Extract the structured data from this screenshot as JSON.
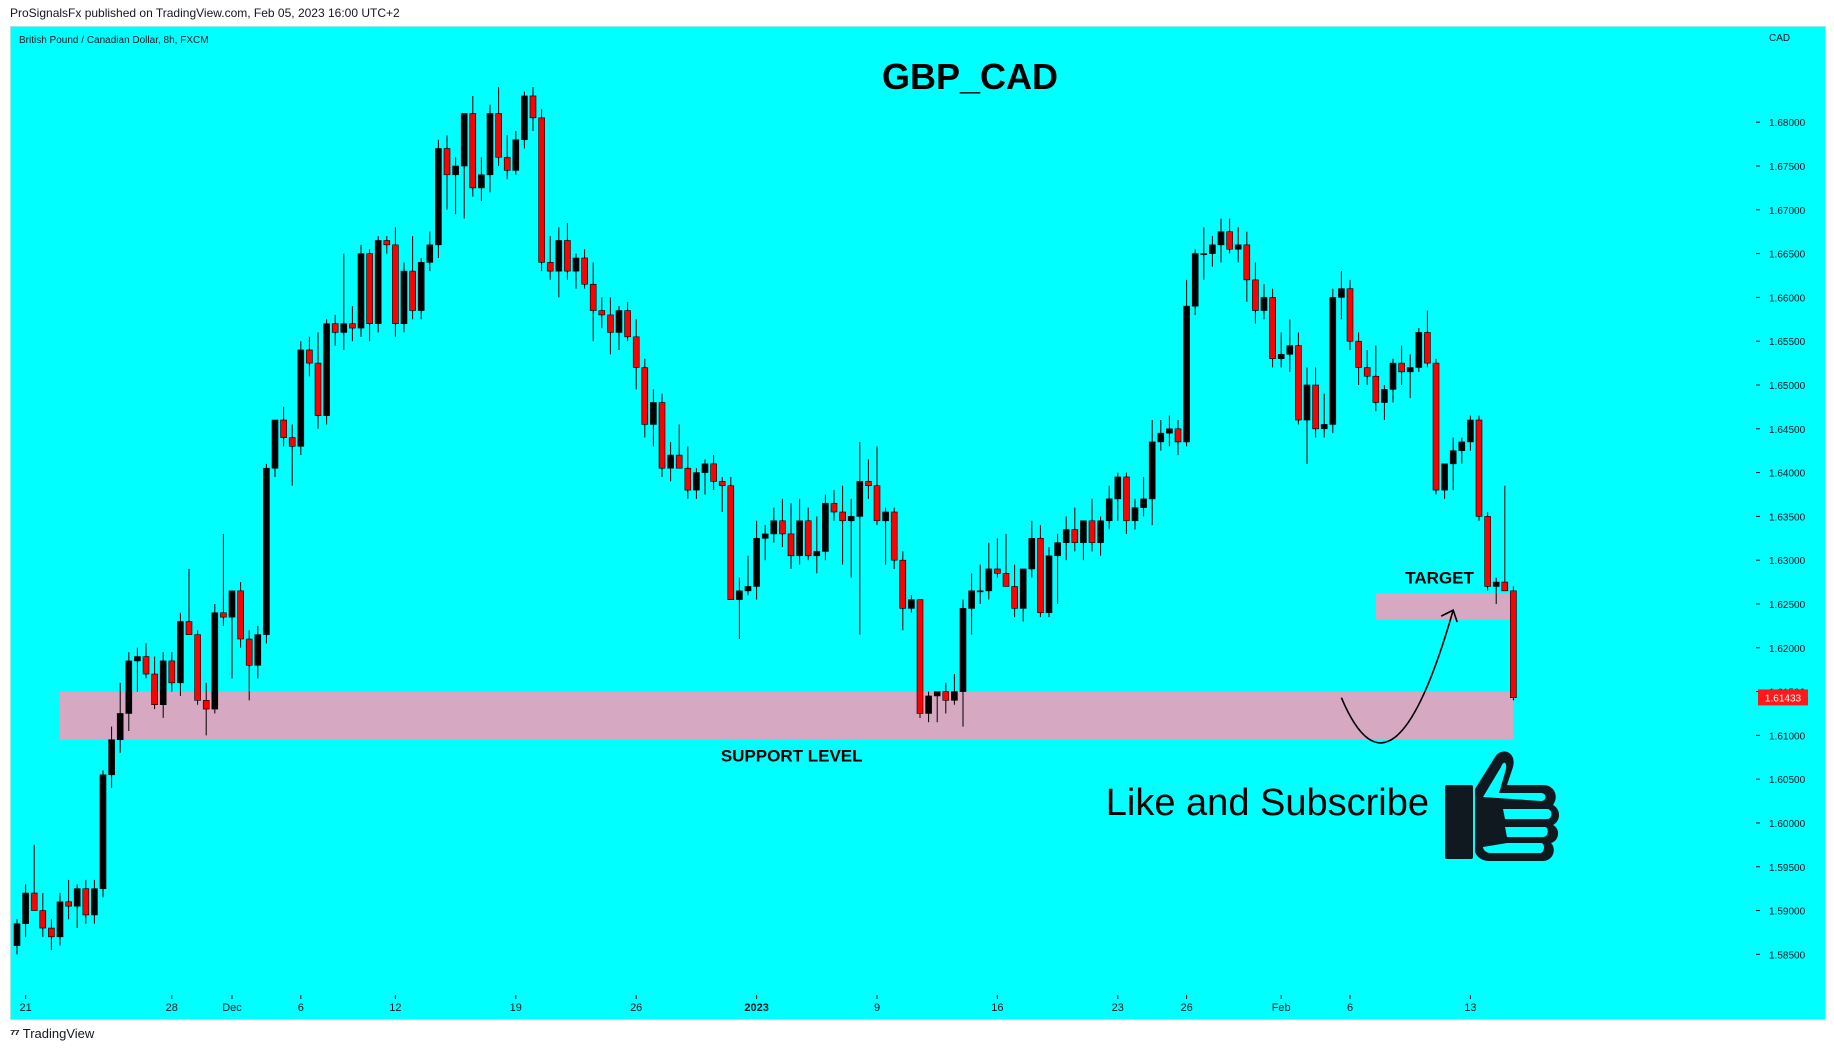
{
  "header": {
    "published_text": "ProSignalsFx published on TradingView.com, Feb 05, 2023 16:00 UTC+2"
  },
  "footer": {
    "brand": "TradingView",
    "logo_glyph": "⁷⁷"
  },
  "colors": {
    "background": "#00ffff",
    "up_candle": "#000000",
    "down_candle": "#ff0000",
    "zone": "#d7a8c2",
    "price_label_bg": "#ff1a1a"
  },
  "chart_data": {
    "type": "candlestick",
    "symbol_line": "British Pound / Canadian Dollar, 8h, FXCM",
    "title": "GBP_CAD",
    "currency_label": "CAD",
    "last_price_label": "1.61433",
    "y_ticks": [
      "1.68000",
      "1.67500",
      "1.67000",
      "1.66500",
      "1.66000",
      "1.65500",
      "1.65000",
      "1.64500",
      "1.64000",
      "1.63500",
      "1.63000",
      "1.62500",
      "1.62000",
      "1.61500",
      "1.61000",
      "1.60500",
      "1.60000",
      "1.59500",
      "1.59000",
      "1.58500"
    ],
    "ylim": [
      1.5815,
      1.6895
    ],
    "x_ticks": [
      {
        "label": "21",
        "index": 1
      },
      {
        "label": "28",
        "index": 18
      },
      {
        "label": "Dec",
        "index": 25
      },
      {
        "label": "6",
        "index": 33
      },
      {
        "label": "12",
        "index": 44
      },
      {
        "label": "19",
        "index": 58
      },
      {
        "label": "26",
        "index": 72
      },
      {
        "label": "2023",
        "index": 86,
        "bold": true
      },
      {
        "label": "9",
        "index": 100
      },
      {
        "label": "16",
        "index": 114
      },
      {
        "label": "23",
        "index": 128
      },
      {
        "label": "26",
        "index": 136
      },
      {
        "label": "Feb",
        "index": 147
      },
      {
        "label": "6",
        "index": 155
      },
      {
        "label": "13",
        "index": 169
      }
    ],
    "candles": [
      [
        1.586,
        1.589,
        1.585,
        1.5885
      ],
      [
        1.5885,
        1.593,
        1.587,
        1.592
      ],
      [
        1.592,
        1.5975,
        1.5905,
        1.59
      ],
      [
        1.59,
        1.592,
        1.587,
        1.588
      ],
      [
        1.588,
        1.589,
        1.5855,
        1.587
      ],
      [
        1.587,
        1.592,
        1.586,
        1.591
      ],
      [
        1.591,
        1.5935,
        1.589,
        1.5905
      ],
      [
        1.5905,
        1.593,
        1.588,
        1.5925
      ],
      [
        1.5925,
        1.5935,
        1.5885,
        1.5895
      ],
      [
        1.5895,
        1.5935,
        1.5885,
        1.5925
      ],
      [
        1.5925,
        1.606,
        1.5915,
        1.6055
      ],
      [
        1.6055,
        1.611,
        1.604,
        1.6095
      ],
      [
        1.6095,
        1.616,
        1.608,
        1.6125
      ],
      [
        1.6125,
        1.6195,
        1.6105,
        1.6185
      ],
      [
        1.6185,
        1.62,
        1.615,
        1.619
      ],
      [
        1.619,
        1.6205,
        1.6165,
        1.617
      ],
      [
        1.617,
        1.619,
        1.613,
        1.6135
      ],
      [
        1.6135,
        1.6195,
        1.612,
        1.6185
      ],
      [
        1.6185,
        1.6195,
        1.615,
        1.616
      ],
      [
        1.616,
        1.624,
        1.6145,
        1.623
      ],
      [
        1.623,
        1.629,
        1.6215,
        1.6215
      ],
      [
        1.6215,
        1.622,
        1.6135,
        1.614
      ],
      [
        1.614,
        1.616,
        1.61,
        1.613
      ],
      [
        1.613,
        1.625,
        1.6125,
        1.624
      ],
      [
        1.624,
        1.633,
        1.6225,
        1.6235
      ],
      [
        1.6235,
        1.6265,
        1.6165,
        1.6265
      ],
      [
        1.6265,
        1.6275,
        1.62,
        1.621
      ],
      [
        1.621,
        1.622,
        1.614,
        1.618
      ],
      [
        1.618,
        1.6225,
        1.6165,
        1.6215
      ],
      [
        1.6215,
        1.641,
        1.6205,
        1.6405
      ],
      [
        1.6405,
        1.6455,
        1.6395,
        1.646
      ],
      [
        1.646,
        1.6475,
        1.643,
        1.644
      ],
      [
        1.644,
        1.6455,
        1.6385,
        1.643
      ],
      [
        1.643,
        1.655,
        1.642,
        1.654
      ],
      [
        1.654,
        1.6555,
        1.651,
        1.6525
      ],
      [
        1.6525,
        1.656,
        1.645,
        1.6465
      ],
      [
        1.6465,
        1.6575,
        1.6455,
        1.657
      ],
      [
        1.657,
        1.658,
        1.6545,
        1.656
      ],
      [
        1.656,
        1.665,
        1.654,
        1.657
      ],
      [
        1.657,
        1.659,
        1.655,
        1.6565
      ],
      [
        1.6565,
        1.666,
        1.6555,
        1.665
      ],
      [
        1.665,
        1.6655,
        1.655,
        1.657
      ],
      [
        1.657,
        1.667,
        1.656,
        1.6665
      ],
      [
        1.6665,
        1.667,
        1.665,
        1.666
      ],
      [
        1.666,
        1.668,
        1.6555,
        1.657
      ],
      [
        1.657,
        1.664,
        1.656,
        1.663
      ],
      [
        1.663,
        1.667,
        1.6575,
        1.6585
      ],
      [
        1.6585,
        1.6645,
        1.6575,
        1.664
      ],
      [
        1.664,
        1.6675,
        1.663,
        1.666
      ],
      [
        1.666,
        1.678,
        1.6645,
        1.677
      ],
      [
        1.677,
        1.6785,
        1.67,
        1.674
      ],
      [
        1.674,
        1.676,
        1.6695,
        1.675
      ],
      [
        1.675,
        1.68,
        1.669,
        1.681
      ],
      [
        1.681,
        1.683,
        1.6715,
        1.6725
      ],
      [
        1.6725,
        1.676,
        1.671,
        1.674
      ],
      [
        1.674,
        1.682,
        1.672,
        1.681
      ],
      [
        1.681,
        1.684,
        1.675,
        1.676
      ],
      [
        1.676,
        1.6785,
        1.6735,
        1.6745
      ],
      [
        1.6745,
        1.679,
        1.674,
        1.678
      ],
      [
        1.678,
        1.6835,
        1.677,
        1.683
      ],
      [
        1.683,
        1.684,
        1.679,
        1.6805
      ],
      [
        1.6805,
        1.6815,
        1.663,
        1.664
      ],
      [
        1.664,
        1.667,
        1.662,
        1.663
      ],
      [
        1.663,
        1.668,
        1.66,
        1.6665
      ],
      [
        1.6665,
        1.6685,
        1.662,
        1.663
      ],
      [
        1.663,
        1.665,
        1.661,
        1.6645
      ],
      [
        1.6645,
        1.6655,
        1.661,
        1.6615
      ],
      [
        1.6615,
        1.664,
        1.655,
        1.6585
      ],
      [
        1.6585,
        1.66,
        1.6565,
        1.658
      ],
      [
        1.658,
        1.66,
        1.6535,
        1.656
      ],
      [
        1.656,
        1.659,
        1.654,
        1.6585
      ],
      [
        1.6585,
        1.6595,
        1.655,
        1.6555
      ],
      [
        1.6555,
        1.6575,
        1.6495,
        1.652
      ],
      [
        1.652,
        1.653,
        1.644,
        1.6455
      ],
      [
        1.6455,
        1.6495,
        1.643,
        1.648
      ],
      [
        1.648,
        1.649,
        1.6395,
        1.6405
      ],
      [
        1.6405,
        1.6435,
        1.639,
        1.642
      ],
      [
        1.642,
        1.6455,
        1.641,
        1.6405
      ],
      [
        1.6405,
        1.643,
        1.637,
        1.638
      ],
      [
        1.638,
        1.6405,
        1.637,
        1.64
      ],
      [
        1.64,
        1.6415,
        1.6375,
        1.641
      ],
      [
        1.641,
        1.642,
        1.638,
        1.639
      ],
      [
        1.639,
        1.6395,
        1.6355,
        1.6385
      ],
      [
        1.6385,
        1.6395,
        1.626,
        1.6255
      ],
      [
        1.6255,
        1.628,
        1.621,
        1.6265
      ],
      [
        1.6265,
        1.6305,
        1.626,
        1.627
      ],
      [
        1.627,
        1.6345,
        1.6255,
        1.6325
      ],
      [
        1.6325,
        1.634,
        1.63,
        1.633
      ],
      [
        1.633,
        1.636,
        1.632,
        1.6345
      ],
      [
        1.6345,
        1.637,
        1.6315,
        1.633
      ],
      [
        1.633,
        1.6365,
        1.629,
        1.6305
      ],
      [
        1.6305,
        1.637,
        1.6295,
        1.6345
      ],
      [
        1.6345,
        1.636,
        1.63,
        1.6305
      ],
      [
        1.6305,
        1.635,
        1.6285,
        1.631
      ],
      [
        1.631,
        1.6375,
        1.63,
        1.6365
      ],
      [
        1.6365,
        1.638,
        1.6345,
        1.6355
      ],
      [
        1.6355,
        1.6385,
        1.6295,
        1.6345
      ],
      [
        1.6345,
        1.637,
        1.628,
        1.635
      ],
      [
        1.635,
        1.6435,
        1.6215,
        1.639
      ],
      [
        1.639,
        1.6415,
        1.637,
        1.6385
      ],
      [
        1.6385,
        1.643,
        1.634,
        1.6345
      ],
      [
        1.6345,
        1.636,
        1.6295,
        1.6355
      ],
      [
        1.6355,
        1.636,
        1.629,
        1.63
      ],
      [
        1.63,
        1.631,
        1.622,
        1.6245
      ],
      [
        1.6245,
        1.626,
        1.624,
        1.6255
      ],
      [
        1.6255,
        1.6255,
        1.612,
        1.6125
      ],
      [
        1.6125,
        1.615,
        1.6115,
        1.6145
      ],
      [
        1.6145,
        1.615,
        1.6115,
        1.615
      ],
      [
        1.615,
        1.616,
        1.6125,
        1.614
      ],
      [
        1.614,
        1.617,
        1.6135,
        1.615
      ],
      [
        1.615,
        1.6255,
        1.611,
        1.6245
      ],
      [
        1.6245,
        1.6285,
        1.6215,
        1.6265
      ],
      [
        1.6265,
        1.6295,
        1.625,
        1.6265
      ],
      [
        1.6265,
        1.632,
        1.6255,
        1.629
      ],
      [
        1.629,
        1.6325,
        1.628,
        1.6285
      ],
      [
        1.6285,
        1.633,
        1.6275,
        1.627
      ],
      [
        1.627,
        1.6295,
        1.6235,
        1.6245
      ],
      [
        1.6245,
        1.629,
        1.623,
        1.629
      ],
      [
        1.629,
        1.6345,
        1.628,
        1.6325
      ],
      [
        1.6325,
        1.634,
        1.6235,
        1.624
      ],
      [
        1.624,
        1.6315,
        1.6235,
        1.6305
      ],
      [
        1.6305,
        1.633,
        1.625,
        1.632
      ],
      [
        1.632,
        1.635,
        1.63,
        1.6335
      ],
      [
        1.6335,
        1.636,
        1.631,
        1.632
      ],
      [
        1.632,
        1.6345,
        1.63,
        1.6345
      ],
      [
        1.6345,
        1.637,
        1.631,
        1.632
      ],
      [
        1.632,
        1.635,
        1.6305,
        1.6345
      ],
      [
        1.6345,
        1.6385,
        1.6335,
        1.637
      ],
      [
        1.637,
        1.64,
        1.6345,
        1.6395
      ],
      [
        1.6395,
        1.64,
        1.633,
        1.6345
      ],
      [
        1.6345,
        1.637,
        1.6335,
        1.636
      ],
      [
        1.636,
        1.6395,
        1.635,
        1.637
      ],
      [
        1.637,
        1.646,
        1.634,
        1.6435
      ],
      [
        1.6435,
        1.646,
        1.6425,
        1.6445
      ],
      [
        1.6445,
        1.6465,
        1.643,
        1.645
      ],
      [
        1.645,
        1.646,
        1.642,
        1.6435
      ],
      [
        1.6435,
        1.662,
        1.643,
        1.659
      ],
      [
        1.659,
        1.6655,
        1.658,
        1.665
      ],
      [
        1.665,
        1.668,
        1.662,
        1.665
      ],
      [
        1.665,
        1.667,
        1.6635,
        1.666
      ],
      [
        1.666,
        1.669,
        1.664,
        1.6675
      ],
      [
        1.6675,
        1.669,
        1.665,
        1.6655
      ],
      [
        1.6655,
        1.668,
        1.664,
        1.666
      ],
      [
        1.666,
        1.6675,
        1.6595,
        1.662
      ],
      [
        1.662,
        1.664,
        1.657,
        1.6585
      ],
      [
        1.6585,
        1.6615,
        1.6575,
        1.66
      ],
      [
        1.66,
        1.661,
        1.652,
        1.653
      ],
      [
        1.653,
        1.656,
        1.652,
        1.6535
      ],
      [
        1.6535,
        1.6575,
        1.6515,
        1.6545
      ],
      [
        1.6545,
        1.656,
        1.6455,
        1.646
      ],
      [
        1.646,
        1.652,
        1.641,
        1.65
      ],
      [
        1.65,
        1.652,
        1.644,
        1.645
      ],
      [
        1.645,
        1.649,
        1.644,
        1.6455
      ],
      [
        1.6455,
        1.661,
        1.6445,
        1.66
      ],
      [
        1.66,
        1.663,
        1.6575,
        1.661
      ],
      [
        1.661,
        1.662,
        1.654,
        1.655
      ],
      [
        1.655,
        1.656,
        1.65,
        1.652
      ],
      [
        1.652,
        1.654,
        1.65,
        1.651
      ],
      [
        1.651,
        1.6545,
        1.647,
        1.648
      ],
      [
        1.648,
        1.65,
        1.646,
        1.6495
      ],
      [
        1.6495,
        1.653,
        1.648,
        1.6525
      ],
      [
        1.6525,
        1.6545,
        1.65,
        1.6515
      ],
      [
        1.6515,
        1.6535,
        1.6485,
        1.652
      ],
      [
        1.652,
        1.6565,
        1.6515,
        1.656
      ],
      [
        1.656,
        1.6585,
        1.652,
        1.6525
      ],
      [
        1.6525,
        1.653,
        1.6375,
        1.638
      ],
      [
        1.638,
        1.64,
        1.637,
        1.641
      ],
      [
        1.641,
        1.644,
        1.638,
        1.6425
      ],
      [
        1.6425,
        1.644,
        1.641,
        1.6435
      ],
      [
        1.6435,
        1.6465,
        1.6425,
        1.646
      ],
      [
        1.646,
        1.6465,
        1.6345,
        1.635
      ],
      [
        1.635,
        1.6355,
        1.6265,
        1.627
      ],
      [
        1.627,
        1.628,
        1.625,
        1.6275
      ],
      [
        1.6275,
        1.6385,
        1.6265,
        1.6265
      ],
      [
        1.6265,
        1.627,
        1.614,
        1.6143
      ]
    ],
    "annotations": [
      {
        "type": "zone",
        "label": "SUPPORT LEVEL",
        "y_top": 1.615,
        "y_bottom": 1.6095,
        "x_start_index": 5,
        "x_end_index": 174
      },
      {
        "type": "zone",
        "label": "TARGET",
        "y_top": 1.6262,
        "y_bottom": 1.6232,
        "x_start_index": 158,
        "x_end_index": 174
      },
      {
        "type": "arrow",
        "from_index": 154,
        "from_price": 1.6143,
        "via_index": 160,
        "via_price": 1.61,
        "to_index": 167,
        "to_price": 1.6243
      }
    ],
    "promo_text": "Like and Subscribe",
    "grid": false,
    "legend": "none"
  }
}
